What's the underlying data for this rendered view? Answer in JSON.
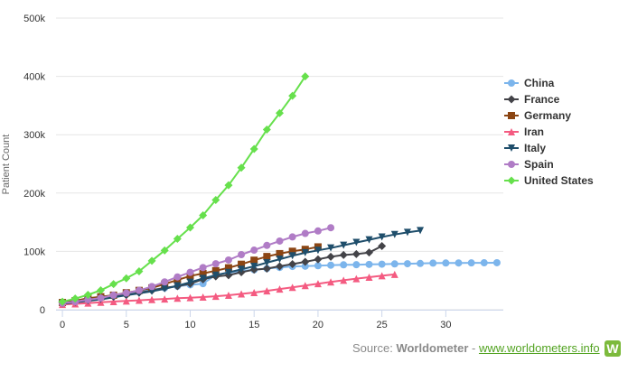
{
  "chart_data": {
    "type": "line",
    "title": "",
    "xlabel": "",
    "ylabel": "Patient Count",
    "xlim": [
      -0.5,
      34.5
    ],
    "ylim": [
      0,
      500000
    ],
    "x_ticks": [
      0,
      5,
      10,
      15,
      20,
      25,
      30
    ],
    "y_ticks": [
      0,
      100000,
      200000,
      300000,
      400000,
      500000
    ],
    "y_tick_labels": [
      "0",
      "100k",
      "200k",
      "300k",
      "400k",
      "500k"
    ],
    "grid": "horizontal",
    "legend_position": "right",
    "series": [
      {
        "name": "China",
        "color": "#7cb5ec",
        "marker": "circle",
        "values": [
          11791,
          14380,
          17205,
          20440,
          24324,
          28018,
          31161,
          34546,
          37198,
          40171,
          42638,
          44653,
          59804,
          63851,
          66492,
          68500,
          70548,
          72436,
          74185,
          74576,
          75465,
          76288,
          76936,
          77150,
          77658,
          78064,
          78497,
          78824,
          79251,
          79824,
          80026,
          80151,
          80270,
          80409,
          80552
        ]
      },
      {
        "name": "France",
        "color": "#434348",
        "marker": "diamond",
        "values": [
          12612,
          14282,
          16018,
          19856,
          22304,
          25233,
          29155,
          32964,
          37575,
          40174,
          44550,
          52128,
          56989,
          59105,
          64338,
          68605,
          70478,
          74390,
          78167,
          82048,
          86334,
          90676,
          93790,
          95403,
          98010,
          109069
        ]
      },
      {
        "name": "Germany",
        "color": "#8b4513",
        "marker": "square",
        "values": [
          12327,
          15320,
          19848,
          22213,
          24873,
          29056,
          32986,
          37323,
          43938,
          50871,
          57695,
          62095,
          66885,
          71808,
          77872,
          84794,
          91159,
          96092,
          100123,
          103374,
          107663
        ]
      },
      {
        "name": "Iran",
        "color": "#f45b81",
        "marker": "triangle",
        "values": [
          9000,
          10075,
          11364,
          12729,
          13938,
          14991,
          16169,
          17361,
          18407,
          19644,
          20610,
          21638,
          23049,
          24811,
          27017,
          29406,
          32332,
          35408,
          38309,
          41495,
          44605,
          47593,
          50468,
          53183,
          55743,
          58226,
          60500
        ]
      },
      {
        "name": "Italy",
        "color": "#1f4e6b",
        "marker": "triangle-down",
        "values": [
          10149,
          12462,
          15113,
          17660,
          21157,
          24747,
          27980,
          31506,
          35713,
          41035,
          47021,
          53578,
          59138,
          63927,
          69176,
          74386,
          80589,
          86498,
          92472,
          97689,
          101739,
          105792,
          110574,
          115242,
          119827,
          124632,
          128948,
          132547,
          135586
        ]
      },
      {
        "name": "Spain",
        "color": "#b07cc6",
        "marker": "circle",
        "values": [
          11178,
          13716,
          17147,
          19980,
          24926,
          28572,
          33089,
          39673,
          47610,
          56188,
          64059,
          72248,
          78797,
          85195,
          94417,
          102136,
          110238,
          117710,
          124736,
          130759,
          135032,
          140510
        ]
      },
      {
        "name": "United States",
        "color": "#66e04c",
        "marker": "diamond",
        "values": [
          13677,
          19100,
          25489,
          33276,
          43847,
          53740,
          65778,
          83836,
          101657,
          121478,
          140886,
          161807,
          188172,
          213372,
          243453,
          275586,
          308850,
          337072,
          366667,
          400000
        ]
      }
    ]
  },
  "source": {
    "prefix": "Source:",
    "name": "Worldometer",
    "separator": "-",
    "link": "www.worldometers.info",
    "logo_letter": "W"
  }
}
